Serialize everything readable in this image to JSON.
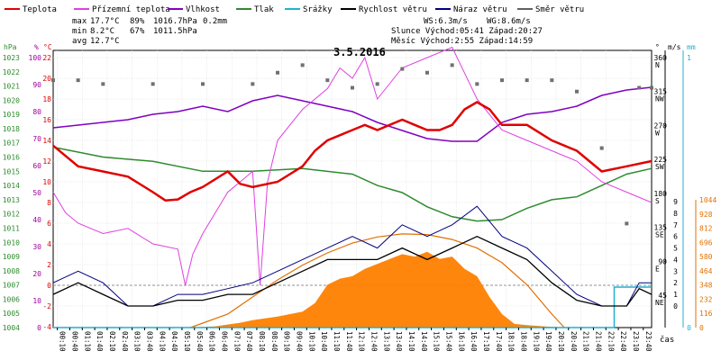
{
  "chart_data": {
    "type": "line",
    "title": "3.5.2016",
    "xlabel": "čas",
    "legend": [
      {
        "name": "Teplota",
        "color": "#e00000"
      },
      {
        "name": "Přízemní teplota",
        "color": "#e040e0"
      },
      {
        "name": "Vlhkost",
        "color": "#8000c0"
      },
      {
        "name": "Tlak",
        "color": "#2e8b2e"
      },
      {
        "name": "Srážky",
        "color": "#20b0d0"
      },
      {
        "name": "Rychlost větru",
        "color": "#000000"
      },
      {
        "name": "Náraz větru",
        "color": "#000080"
      },
      {
        "name": "Směr větru",
        "color": "#606060"
      }
    ],
    "stats": {
      "max": {
        "label": "max",
        "temp": "17.7°C",
        "hum": "89%",
        "press": "1016.7hPa",
        "rain": "0.2mm"
      },
      "min": {
        "label": "min",
        "temp": "8.2°C",
        "hum": "67%",
        "press": "1011.5hPa"
      },
      "avg": {
        "label": "avg",
        "temp": "12.7°C"
      },
      "ws": "WS:6.3m/s",
      "wg": "WG:8.6m/s",
      "sun": "Slunce Východ:05:41  Západ:20:27",
      "moon": "Měsíc  Východ:2:55   Západ:14:59"
    },
    "axes": {
      "hpa": {
        "label": "hPa",
        "color": "#2e8b2e",
        "ticks": [
          "1023",
          "1022",
          "1021",
          "1020",
          "1019",
          "1018",
          "1017",
          "1016",
          "1015",
          "1014",
          "1013",
          "1012",
          "1011",
          "1010",
          "1009",
          "1008",
          "1007",
          "1006",
          "1005",
          "1004"
        ],
        "range": [
          1004,
          1023.5
        ]
      },
      "pct": {
        "label": "%",
        "color": "#a000a0",
        "ticks": [
          "100",
          "90",
          "80",
          "70",
          "60",
          "50",
          "40",
          "30",
          "20",
          "10",
          "0"
        ],
        "range": [
          0,
          100
        ]
      },
      "temp": {
        "label": "°C",
        "color": "#e00000",
        "ticks": [
          "22",
          "20",
          "18",
          "16",
          "14",
          "12",
          "10",
          "8",
          "6",
          "4",
          "2",
          "0",
          "-2",
          "-4"
        ],
        "range": [
          -4,
          22
        ]
      },
      "deg": {
        "label": "°",
        "ticks": [
          "360",
          "315",
          "270",
          "225",
          "180",
          "135",
          "90",
          "45"
        ],
        "ticks_dir": [
          "N",
          "NW",
          "W",
          "SW",
          "S",
          "SE",
          "E",
          "NE"
        ]
      },
      "ms": {
        "label": "m/s",
        "ticks": [
          "9",
          "8",
          "7",
          "6",
          "5",
          "4",
          "3",
          "2",
          "1",
          "0"
        ],
        "range": [
          0,
          9
        ]
      },
      "mm": {
        "label": "mm",
        "color": "#20b0d0",
        "ticks": [
          "1",
          "0"
        ]
      },
      "wm2": {
        "color": "#e07000",
        "ticks": [
          "1044",
          "928",
          "812",
          "696",
          "580",
          "464",
          "348",
          "232",
          "116",
          "0"
        ],
        "range": [
          0,
          1044
        ]
      }
    },
    "x_ticks": [
      "00:10",
      "00:40",
      "01:10",
      "01:40",
      "02:10",
      "02:40",
      "03:10",
      "03:40",
      "04:10",
      "04:40",
      "05:10",
      "05:40",
      "06:10",
      "06:40",
      "07:10",
      "07:40",
      "08:10",
      "08:40",
      "09:10",
      "09:40",
      "10:10",
      "10:40",
      "11:10",
      "11:40",
      "12:10",
      "12:40",
      "13:10",
      "13:40",
      "14:10",
      "14:40",
      "15:10",
      "15:40",
      "16:10",
      "16:40",
      "17:10",
      "17:40",
      "18:10",
      "18:40",
      "19:10",
      "19:40",
      "20:10",
      "20:40",
      "21:10",
      "21:40",
      "22:10",
      "22:40",
      "23:10",
      "23:40"
    ],
    "x_range_h": [
      0,
      24
    ],
    "temperature": [
      [
        0,
        13.5
      ],
      [
        1,
        11.5
      ],
      [
        2,
        11
      ],
      [
        3,
        10.5
      ],
      [
        4,
        9
      ],
      [
        4.5,
        8.2
      ],
      [
        5,
        8.3
      ],
      [
        5.5,
        9
      ],
      [
        6,
        9.5
      ],
      [
        7,
        11
      ],
      [
        7.5,
        9.8
      ],
      [
        8,
        9.5
      ],
      [
        9,
        10
      ],
      [
        10,
        11.5
      ],
      [
        10.5,
        13
      ],
      [
        11,
        14
      ],
      [
        12,
        15
      ],
      [
        12.5,
        15.5
      ],
      [
        13,
        15
      ],
      [
        14,
        16
      ],
      [
        14.5,
        15.5
      ],
      [
        15,
        15
      ],
      [
        15.5,
        15
      ],
      [
        16,
        15.5
      ],
      [
        16.5,
        17
      ],
      [
        17,
        17.7
      ],
      [
        17.5,
        17
      ],
      [
        18,
        15.5
      ],
      [
        19,
        15.5
      ],
      [
        20,
        14
      ],
      [
        21,
        13
      ],
      [
        22,
        11
      ],
      [
        23,
        11.5
      ],
      [
        24,
        12
      ]
    ],
    "ground_temperature": [
      [
        0,
        9
      ],
      [
        0.5,
        7
      ],
      [
        1,
        6
      ],
      [
        2,
        5
      ],
      [
        3,
        5.5
      ],
      [
        4,
        4
      ],
      [
        5,
        3.5
      ],
      [
        5.3,
        0
      ],
      [
        5.6,
        3
      ],
      [
        6,
        5
      ],
      [
        7,
        9
      ],
      [
        8,
        11
      ],
      [
        8.3,
        0
      ],
      [
        8.6,
        10
      ],
      [
        9,
        14
      ],
      [
        10,
        17
      ],
      [
        11,
        19
      ],
      [
        11.5,
        21
      ],
      [
        12,
        20
      ],
      [
        12.5,
        22
      ],
      [
        13,
        18
      ],
      [
        14,
        21
      ],
      [
        15,
        22
      ],
      [
        16,
        23
      ],
      [
        17,
        18
      ],
      [
        18,
        15
      ],
      [
        19,
        14
      ],
      [
        20,
        13
      ],
      [
        21,
        12
      ],
      [
        22,
        10
      ],
      [
        23,
        9
      ],
      [
        24,
        8
      ]
    ],
    "humidity": [
      [
        0,
        74
      ],
      [
        1,
        75
      ],
      [
        2,
        76
      ],
      [
        3,
        77
      ],
      [
        4,
        79
      ],
      [
        5,
        80
      ],
      [
        6,
        82
      ],
      [
        7,
        80
      ],
      [
        8,
        84
      ],
      [
        9,
        86
      ],
      [
        10,
        84
      ],
      [
        11,
        82
      ],
      [
        12,
        80
      ],
      [
        13,
        76
      ],
      [
        14,
        73
      ],
      [
        15,
        70
      ],
      [
        16,
        69
      ],
      [
        17,
        69
      ],
      [
        18,
        76
      ],
      [
        19,
        79
      ],
      [
        20,
        80
      ],
      [
        21,
        82
      ],
      [
        22,
        86
      ],
      [
        23,
        88
      ],
      [
        24,
        89
      ]
    ],
    "pressure": [
      [
        0,
        1016.7
      ],
      [
        2,
        1016
      ],
      [
        4,
        1015.7
      ],
      [
        6,
        1015
      ],
      [
        8,
        1015
      ],
      [
        10,
        1015.2
      ],
      [
        12,
        1014.8
      ],
      [
        13,
        1014
      ],
      [
        14,
        1013.5
      ],
      [
        15,
        1012.5
      ],
      [
        16,
        1011.8
      ],
      [
        17,
        1011.5
      ],
      [
        18,
        1011.6
      ],
      [
        19,
        1012.4
      ],
      [
        20,
        1013
      ],
      [
        21,
        1013.2
      ],
      [
        22,
        1014
      ],
      [
        23,
        1014.8
      ],
      [
        24,
        1015.2
      ]
    ],
    "wind_speed": [
      [
        0,
        1
      ],
      [
        1,
        2
      ],
      [
        2,
        1
      ],
      [
        3,
        0
      ],
      [
        4,
        0
      ],
      [
        5,
        0.5
      ],
      [
        6,
        0.5
      ],
      [
        7,
        1
      ],
      [
        8,
        1
      ],
      [
        9,
        2
      ],
      [
        10,
        3
      ],
      [
        11,
        4
      ],
      [
        12,
        4
      ],
      [
        13,
        4
      ],
      [
        14,
        5
      ],
      [
        15,
        4
      ],
      [
        16,
        5
      ],
      [
        17,
        6
      ],
      [
        18,
        5
      ],
      [
        19,
        4
      ],
      [
        20,
        2
      ],
      [
        21,
        0.5
      ],
      [
        22,
        0
      ],
      [
        23,
        0
      ],
      [
        23.5,
        1.5
      ],
      [
        24,
        1
      ]
    ],
    "wind_gust": [
      [
        0,
        2
      ],
      [
        1,
        3
      ],
      [
        2,
        2
      ],
      [
        3,
        0
      ],
      [
        4,
        0
      ],
      [
        5,
        1
      ],
      [
        6,
        1
      ],
      [
        7,
        1.5
      ],
      [
        8,
        2
      ],
      [
        9,
        3
      ],
      [
        10,
        4
      ],
      [
        11,
        5
      ],
      [
        12,
        6
      ],
      [
        13,
        5
      ],
      [
        14,
        7
      ],
      [
        15,
        6
      ],
      [
        16,
        7
      ],
      [
        17,
        8.6
      ],
      [
        18,
        6
      ],
      [
        19,
        5
      ],
      [
        20,
        3
      ],
      [
        21,
        1
      ],
      [
        22,
        0
      ],
      [
        23,
        0
      ],
      [
        23.5,
        2
      ],
      [
        24,
        2
      ]
    ],
    "wind_dir": [
      [
        0,
        330
      ],
      [
        1,
        330
      ],
      [
        2,
        325
      ],
      [
        4,
        325
      ],
      [
        6,
        325
      ],
      [
        8,
        325
      ],
      [
        9,
        340
      ],
      [
        10,
        350
      ],
      [
        11,
        330
      ],
      [
        12,
        320
      ],
      [
        13,
        325
      ],
      [
        14,
        345
      ],
      [
        15,
        340
      ],
      [
        16,
        350
      ],
      [
        17,
        325
      ],
      [
        18,
        330
      ],
      [
        19,
        330
      ],
      [
        20,
        330
      ],
      [
        21,
        315
      ],
      [
        22,
        240
      ],
      [
        23,
        140
      ],
      [
        23.5,
        320
      ],
      [
        24,
        320
      ]
    ],
    "rain_mm": [
      [
        0,
        0
      ],
      [
        22.5,
        0
      ],
      [
        22.5,
        0.15
      ],
      [
        24,
        0.15
      ]
    ],
    "solar_model": [
      [
        5.5,
        0
      ],
      [
        7,
        110
      ],
      [
        8,
        250
      ],
      [
        9,
        390
      ],
      [
        10,
        510
      ],
      [
        11,
        610
      ],
      [
        12,
        690
      ],
      [
        13,
        740
      ],
      [
        14,
        765
      ],
      [
        15,
        760
      ],
      [
        16,
        720
      ],
      [
        17,
        650
      ],
      [
        18,
        530
      ],
      [
        19,
        350
      ],
      [
        20,
        110
      ],
      [
        20.5,
        0
      ]
    ],
    "solar_measured": [
      [
        5.5,
        0
      ],
      [
        6.5,
        10
      ],
      [
        7.5,
        40
      ],
      [
        8,
        60
      ],
      [
        9,
        90
      ],
      [
        10,
        130
      ],
      [
        10.5,
        200
      ],
      [
        11,
        350
      ],
      [
        11.5,
        400
      ],
      [
        12,
        420
      ],
      [
        12.5,
        480
      ],
      [
        13,
        520
      ],
      [
        13.5,
        560
      ],
      [
        14,
        600
      ],
      [
        14.5,
        580
      ],
      [
        15,
        620
      ],
      [
        15.5,
        560
      ],
      [
        16,
        580
      ],
      [
        16.5,
        480
      ],
      [
        17,
        420
      ],
      [
        17.5,
        250
      ],
      [
        18,
        110
      ],
      [
        18.5,
        30
      ],
      [
        19,
        20
      ],
      [
        20,
        5
      ],
      [
        20.5,
        0
      ]
    ]
  }
}
